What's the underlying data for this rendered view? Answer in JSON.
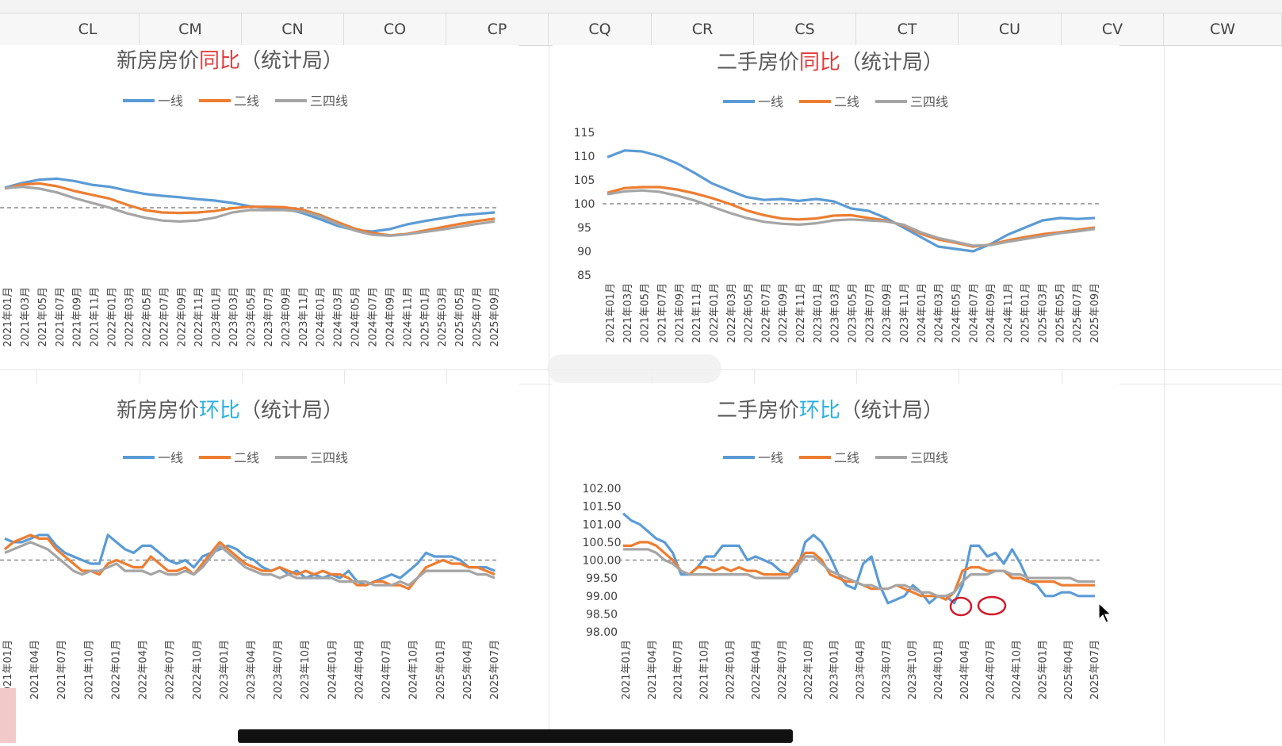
{
  "spreadsheet": {
    "columns": [
      "CL",
      "CM",
      "CN",
      "CO",
      "CP",
      "CQ",
      "CR",
      "CS",
      "CT",
      "CU",
      "CV",
      "CW"
    ]
  },
  "legend_labels": [
    "一线",
    "二线",
    "三四线"
  ],
  "series_colors": {
    "一线": "#5b9bd5",
    "二线": "#ed7d31",
    "三四线": "#a5a5a5"
  },
  "chart_data": [
    {
      "id": "new_yoy",
      "type": "line",
      "title_prefix": "新房房价",
      "title_highlight": "同比",
      "title_suffix": "（统计局）",
      "highlight_color": "#e03c3c",
      "ylim": [
        85,
        115
      ],
      "yticks": [],
      "reference_line": 100,
      "xticks": [
        "2021年01月",
        "2021年03月",
        "2021年05月",
        "2021年07月",
        "2021年09月",
        "2021年11月",
        "2022年01月",
        "2022年03月",
        "2022年05月",
        "2022年07月",
        "2022年09月",
        "2022年11月",
        "2023年01月",
        "2023年03月",
        "2023年05月",
        "2023年07月",
        "2023年09月",
        "2023年11月",
        "2024年01月",
        "2024年03月",
        "2024年05月",
        "2024年07月",
        "2024年09月",
        "2024年11月",
        "2025年01月",
        "2025年03月",
        "2025年05月",
        "2025年07月",
        "2025年09月"
      ],
      "series": [
        {
          "name": "一线",
          "values": [
            104.2,
            105.2,
            105.9,
            106.1,
            105.6,
            104.8,
            104.4,
            103.6,
            102.9,
            102.5,
            102.2,
            101.8,
            101.5,
            101.0,
            100.3,
            100.0,
            99.8,
            98.9,
            97.6,
            96.2,
            95.3,
            95.0,
            95.5,
            96.5,
            97.2,
            97.8,
            98.4,
            98.7,
            99.0
          ]
        },
        {
          "name": "二线",
          "values": [
            104.0,
            104.9,
            105.1,
            104.5,
            103.5,
            102.7,
            101.9,
            100.6,
            99.5,
            99.0,
            98.9,
            99.0,
            99.3,
            99.9,
            100.2,
            100.2,
            100.1,
            99.6,
            98.5,
            97.0,
            95.6,
            94.7,
            94.2,
            94.5,
            95.2,
            95.9,
            96.6,
            97.2,
            97.7
          ]
        },
        {
          "name": "三四线",
          "values": [
            104.1,
            104.4,
            104.0,
            103.2,
            102.0,
            101.0,
            100.0,
            98.8,
            97.9,
            97.3,
            97.1,
            97.3,
            97.9,
            99.0,
            99.5,
            99.5,
            99.5,
            99.2,
            98.2,
            96.6,
            95.2,
            94.3,
            94.1,
            94.4,
            94.9,
            95.4,
            96.0,
            96.6,
            97.1
          ]
        }
      ]
    },
    {
      "id": "resale_yoy",
      "type": "line",
      "title_prefix": "二手房价",
      "title_highlight": "同比",
      "title_suffix": "（统计局）",
      "highlight_color": "#e03c3c",
      "ylim": [
        85,
        115
      ],
      "yticks": [
        "115",
        "110",
        "105",
        "100",
        "95",
        "90",
        "85"
      ],
      "reference_line": 100,
      "xticks": [
        "2021年01月",
        "2021年03月",
        "2021年05月",
        "2021年07月",
        "2021年09月",
        "2021年11月",
        "2022年01月",
        "2022年03月",
        "2022年05月",
        "2022年07月",
        "2022年09月",
        "2022年11月",
        "2023年01月",
        "2023年03月",
        "2023年05月",
        "2023年07月",
        "2023年09月",
        "2023年11月",
        "2024年01月",
        "2024年03月",
        "2024年05月",
        "2024年07月",
        "2024年09月",
        "2024年11月",
        "2025年01月",
        "2025年03月",
        "2025年05月",
        "2025年07月",
        "2025年09月"
      ],
      "series": [
        {
          "name": "一线",
          "values": [
            109.8,
            111.2,
            111.0,
            110.0,
            108.5,
            106.5,
            104.3,
            102.8,
            101.4,
            100.8,
            101.0,
            100.6,
            101.0,
            100.5,
            99.0,
            98.5,
            97.0,
            95.0,
            93.0,
            91.0,
            90.5,
            90.0,
            91.5,
            93.5,
            95.0,
            96.5,
            97.0,
            96.8,
            97.0
          ]
        },
        {
          "name": "二线",
          "values": [
            102.3,
            103.3,
            103.5,
            103.5,
            103.0,
            102.2,
            101.2,
            100.0,
            98.6,
            97.6,
            96.9,
            96.7,
            96.9,
            97.5,
            97.6,
            97.0,
            96.5,
            95.4,
            93.7,
            92.5,
            91.8,
            91.0,
            91.4,
            92.3,
            93.0,
            93.6,
            94.0,
            94.5,
            95.0
          ]
        },
        {
          "name": "三四线",
          "values": [
            102.0,
            102.6,
            102.8,
            102.5,
            101.7,
            100.7,
            99.4,
            98.1,
            97.0,
            96.2,
            95.8,
            95.6,
            95.9,
            96.5,
            96.7,
            96.5,
            96.3,
            95.6,
            94.0,
            92.8,
            92.0,
            91.2,
            91.3,
            92.0,
            92.6,
            93.2,
            93.8,
            94.2,
            94.7
          ]
        }
      ]
    },
    {
      "id": "new_mom",
      "type": "line",
      "title_prefix": "新房房价",
      "title_highlight": "环比",
      "title_suffix": "（统计局）",
      "highlight_color": "#2ab0e3",
      "ylim": [
        98.0,
        102.0
      ],
      "yticks": [],
      "reference_line": 100,
      "xticks": [
        "2021年01月",
        "2021年04月",
        "2021年07月",
        "2021年10月",
        "2022年01月",
        "2022年04月",
        "2022年07月",
        "2022年10月",
        "2023年01月",
        "2023年04月",
        "2023年07月",
        "2023年10月",
        "2024年01月",
        "2024年04月",
        "2024年07月",
        "2024年10月",
        "2025年01月",
        "2025年04月",
        "2025年07月"
      ],
      "series": [
        {
          "name": "一线",
          "values": [
            100.6,
            100.5,
            100.5,
            100.6,
            100.7,
            100.7,
            100.4,
            100.2,
            100.1,
            100.0,
            99.9,
            99.9,
            100.7,
            100.5,
            100.3,
            100.2,
            100.4,
            100.4,
            100.2,
            100.0,
            99.9,
            100.0,
            99.8,
            100.1,
            100.2,
            100.3,
            100.4,
            100.3,
            100.1,
            100.0,
            99.8,
            99.7,
            99.8,
            99.6,
            99.7,
            99.5,
            99.6,
            99.5,
            99.6,
            99.5,
            99.7,
            99.4,
            99.3,
            99.4,
            99.5,
            99.6,
            99.5,
            99.7,
            99.9,
            100.2,
            100.1,
            100.1,
            100.1,
            100.0,
            99.8,
            99.8,
            99.8,
            99.7
          ]
        },
        {
          "name": "二线",
          "values": [
            100.3,
            100.5,
            100.6,
            100.7,
            100.6,
            100.6,
            100.3,
            100.1,
            99.9,
            99.7,
            99.7,
            99.6,
            99.9,
            100.0,
            99.9,
            99.8,
            99.8,
            100.1,
            99.9,
            99.7,
            99.7,
            99.8,
            99.6,
            99.9,
            100.2,
            100.5,
            100.3,
            100.1,
            99.9,
            99.8,
            99.7,
            99.7,
            99.8,
            99.7,
            99.6,
            99.7,
            99.6,
            99.7,
            99.6,
            99.6,
            99.5,
            99.3,
            99.3,
            99.4,
            99.4,
            99.3,
            99.3,
            99.2,
            99.5,
            99.8,
            99.9,
            100.0,
            99.9,
            99.9,
            99.8,
            99.8,
            99.7,
            99.6
          ]
        },
        {
          "name": "三四线",
          "values": [
            100.2,
            100.3,
            100.4,
            100.5,
            100.4,
            100.3,
            100.1,
            99.9,
            99.7,
            99.6,
            99.7,
            99.7,
            99.8,
            99.9,
            99.7,
            99.7,
            99.7,
            99.6,
            99.7,
            99.6,
            99.6,
            99.7,
            99.6,
            99.8,
            100.1,
            100.4,
            100.2,
            100.0,
            99.8,
            99.7,
            99.6,
            99.6,
            99.5,
            99.6,
            99.5,
            99.5,
            99.5,
            99.5,
            99.5,
            99.4,
            99.4,
            99.4,
            99.4,
            99.3,
            99.3,
            99.3,
            99.4,
            99.3,
            99.5,
            99.7,
            99.7,
            99.7,
            99.7,
            99.7,
            99.7,
            99.6,
            99.6,
            99.5
          ]
        }
      ]
    },
    {
      "id": "resale_mom",
      "type": "line",
      "title_prefix": "二手房价",
      "title_highlight": "环比",
      "title_suffix": "（统计局）",
      "highlight_color": "#2ab0e3",
      "ylim": [
        98.0,
        102.0
      ],
      "yticks": [
        "102.00",
        "101.50",
        "101.00",
        "100.50",
        "100.00",
        "99.50",
        "99.00",
        "98.50",
        "98.00"
      ],
      "reference_line": 100,
      "xticks": [
        "2021年01月",
        "2021年04月",
        "2021年07月",
        "2021年10月",
        "2022年01月",
        "2022年04月",
        "2022年07月",
        "2022年10月",
        "2023年01月",
        "2023年04月",
        "2023年07月",
        "2023年10月",
        "2024年01月",
        "2024年04月",
        "2024年07月",
        "2024年10月",
        "2025年01月",
        "2025年04月",
        "2025年07月"
      ],
      "series": [
        {
          "name": "一线",
          "values": [
            101.3,
            101.1,
            101.0,
            100.8,
            100.6,
            100.5,
            100.2,
            99.6,
            99.6,
            99.8,
            100.1,
            100.1,
            100.4,
            100.4,
            100.4,
            100.0,
            100.1,
            100.0,
            99.9,
            99.7,
            99.6,
            99.7,
            100.5,
            100.7,
            100.5,
            100.1,
            99.6,
            99.3,
            99.2,
            99.9,
            100.1,
            99.3,
            98.8,
            98.9,
            99.0,
            99.3,
            99.1,
            98.8,
            99.0,
            99.0,
            98.8,
            99.3,
            100.4,
            100.4,
            100.1,
            100.2,
            99.9,
            100.3,
            99.9,
            99.4,
            99.3,
            99.0,
            99.0,
            99.1,
            99.1,
            99.0,
            99.0,
            99.0
          ]
        },
        {
          "name": "二线",
          "values": [
            100.4,
            100.4,
            100.5,
            100.5,
            100.4,
            100.2,
            100.0,
            99.7,
            99.6,
            99.8,
            99.8,
            99.7,
            99.8,
            99.7,
            99.8,
            99.7,
            99.7,
            99.6,
            99.6,
            99.6,
            99.6,
            99.9,
            100.2,
            100.2,
            100.0,
            99.6,
            99.5,
            99.4,
            99.4,
            99.3,
            99.2,
            99.2,
            99.2,
            99.3,
            99.2,
            99.1,
            99.0,
            99.0,
            99.0,
            98.9,
            99.1,
            99.7,
            99.8,
            99.8,
            99.7,
            99.7,
            99.7,
            99.5,
            99.5,
            99.4,
            99.4,
            99.4,
            99.4,
            99.3,
            99.3,
            99.3,
            99.3,
            99.3
          ]
        },
        {
          "name": "三四线",
          "values": [
            100.3,
            100.3,
            100.3,
            100.3,
            100.2,
            100.0,
            99.9,
            99.7,
            99.6,
            99.6,
            99.6,
            99.6,
            99.6,
            99.6,
            99.6,
            99.6,
            99.5,
            99.5,
            99.5,
            99.5,
            99.5,
            99.8,
            100.1,
            100.1,
            99.9,
            99.7,
            99.6,
            99.5,
            99.4,
            99.3,
            99.3,
            99.2,
            99.2,
            99.3,
            99.3,
            99.2,
            99.1,
            99.1,
            99.0,
            99.0,
            99.1,
            99.4,
            99.6,
            99.6,
            99.6,
            99.7,
            99.7,
            99.6,
            99.6,
            99.5,
            99.5,
            99.5,
            99.5,
            99.5,
            99.5,
            99.4,
            99.4,
            99.4
          ]
        }
      ]
    }
  ]
}
